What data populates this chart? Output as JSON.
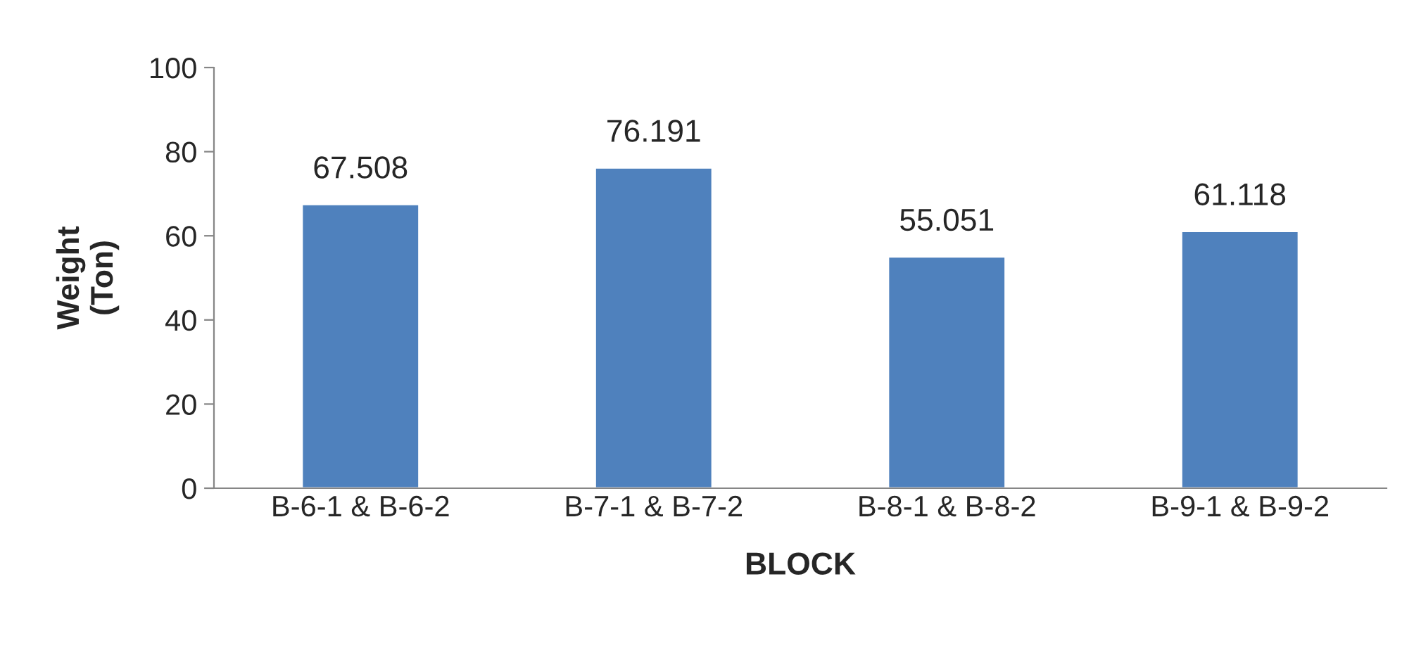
{
  "chart_data": {
    "type": "bar",
    "xlabel": "BLOCK",
    "ylabel": "Weight\n(Ton)",
    "categories": [
      "B-6-1 & B-6-2",
      "B-7-1 & B-7-2",
      "B-8-1 & B-8-2",
      "B-9-1 & B-9-2"
    ],
    "values": [
      67.508,
      76.191,
      55.051,
      61.118
    ],
    "color": "#4f81bd",
    "ylim": [
      0,
      100
    ],
    "yticks": [
      0,
      20,
      40,
      60,
      80,
      100
    ],
    "grid": false,
    "data_labels": true
  }
}
